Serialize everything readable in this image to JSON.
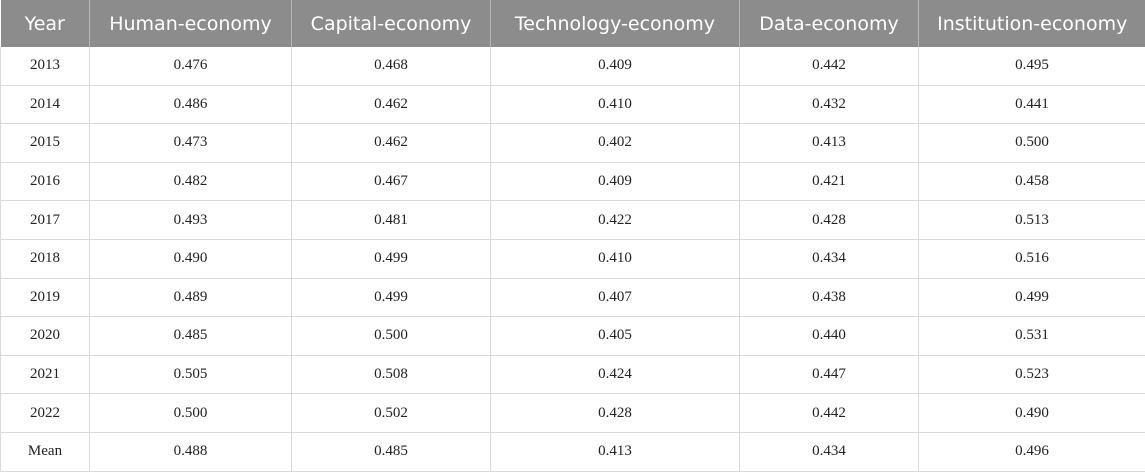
{
  "table": {
    "headers": [
      "Year",
      "Human-economy",
      "Capital-economy",
      "Technology-economy",
      "Data-economy",
      "Institution-economy"
    ],
    "rows": [
      [
        "2013",
        "0.476",
        "0.468",
        "0.409",
        "0.442",
        "0.495"
      ],
      [
        "2014",
        "0.486",
        "0.462",
        "0.410",
        "0.432",
        "0.441"
      ],
      [
        "2015",
        "0.473",
        "0.462",
        "0.402",
        "0.413",
        "0.500"
      ],
      [
        "2016",
        "0.482",
        "0.467",
        "0.409",
        "0.421",
        "0.458"
      ],
      [
        "2017",
        "0.493",
        "0.481",
        "0.422",
        "0.428",
        "0.513"
      ],
      [
        "2018",
        "0.490",
        "0.499",
        "0.410",
        "0.434",
        "0.516"
      ],
      [
        "2019",
        "0.489",
        "0.499",
        "0.407",
        "0.438",
        "0.499"
      ],
      [
        "2020",
        "0.485",
        "0.500",
        "0.405",
        "0.440",
        "0.531"
      ],
      [
        "2021",
        "0.505",
        "0.508",
        "0.424",
        "0.447",
        "0.523"
      ],
      [
        "2022",
        "0.500",
        "0.502",
        "0.428",
        "0.442",
        "0.490"
      ],
      [
        "Mean",
        "0.488",
        "0.485",
        "0.413",
        "0.434",
        "0.496"
      ]
    ]
  }
}
